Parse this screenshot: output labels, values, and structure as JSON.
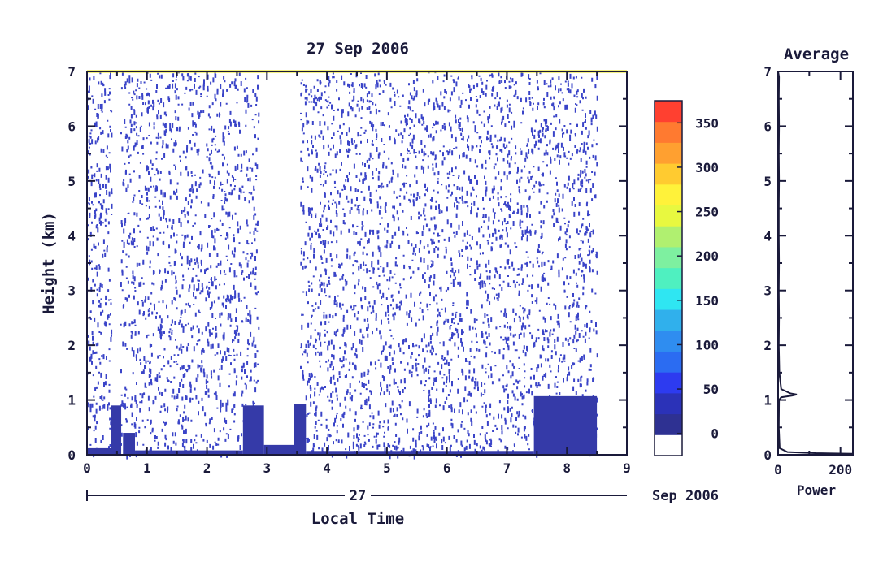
{
  "chart_data": [
    {
      "type": "heatmap",
      "title": "27 Sep 2006",
      "xlabel": "Local Time",
      "ylabel": "Height (km)",
      "xlim": [
        0,
        9
      ],
      "ylim": [
        0,
        7
      ],
      "x_ticks": [
        "0",
        "1",
        "2",
        "3",
        "4",
        "5",
        "6",
        "7",
        "8",
        "9"
      ],
      "y_ticks": [
        "0",
        "1",
        "2",
        "3",
        "4",
        "5",
        "6",
        "7"
      ],
      "date_row": {
        "day": "27",
        "month_year": "Sep 2006"
      },
      "noise": {
        "x_range": [
          0.0,
          8.5
        ],
        "y_range": [
          0.0,
          7.0
        ],
        "gaps": [
          [
            0.4,
            0.55
          ],
          [
            2.85,
            3.55
          ]
        ]
      },
      "dense_regions": [
        {
          "x0": 0.0,
          "x1": 0.4,
          "y0": 0.0,
          "y1": 0.12
        },
        {
          "x0": 0.4,
          "x1": 0.57,
          "y0": 0.0,
          "y1": 0.9
        },
        {
          "x0": 0.6,
          "x1": 0.8,
          "y0": 0.0,
          "y1": 0.4
        },
        {
          "x0": 0.8,
          "x1": 2.6,
          "y0": 0.0,
          "y1": 0.08
        },
        {
          "x0": 2.6,
          "x1": 2.95,
          "y0": 0.0,
          "y1": 0.9
        },
        {
          "x0": 2.95,
          "x1": 3.5,
          "y0": 0.0,
          "y1": 0.18
        },
        {
          "x0": 3.45,
          "x1": 3.65,
          "y0": 0.0,
          "y1": 0.92
        },
        {
          "x0": 3.65,
          "x1": 7.45,
          "y0": 0.0,
          "y1": 0.07
        },
        {
          "x0": 7.45,
          "x1": 8.5,
          "y0": 0.0,
          "y1": 1.07
        }
      ]
    },
    {
      "type": "bar",
      "title": "",
      "colorbar_ticks": [
        "0",
        "50",
        "100",
        "150",
        "200",
        "250",
        "300",
        "350"
      ],
      "colors": [
        "#ffffff",
        "#2e3192",
        "#2b32b8",
        "#2d3bf0",
        "#2b6cf2",
        "#2f8df0",
        "#30b0ec",
        "#2fe6f2",
        "#4ff0c0",
        "#7ef0a0",
        "#b0f070",
        "#e8f840",
        "#fff23a",
        "#ffcb30",
        "#ffa030",
        "#ff7a30",
        "#ff4030"
      ],
      "vmin": -25,
      "vmax": 375
    },
    {
      "type": "line",
      "title": "Average",
      "xlabel": "Power",
      "ylabel": "",
      "xlim": [
        0,
        240
      ],
      "ylim": [
        0,
        7
      ],
      "x_ticks": [
        "0",
        "200"
      ],
      "y_ticks": [
        "0",
        "1",
        "2",
        "3",
        "4",
        "5",
        "6",
        "7"
      ],
      "points": [
        [
          0,
          7
        ],
        [
          3,
          6.9
        ],
        [
          2,
          6.5
        ],
        [
          3,
          6
        ],
        [
          2,
          5.5
        ],
        [
          3,
          5
        ],
        [
          2,
          4.5
        ],
        [
          2,
          4
        ],
        [
          3,
          3.5
        ],
        [
          2,
          3
        ],
        [
          3,
          2.5
        ],
        [
          2,
          2
        ],
        [
          4,
          1.5
        ],
        [
          10,
          1.2
        ],
        [
          40,
          1.12
        ],
        [
          60,
          1.1
        ],
        [
          45,
          1.08
        ],
        [
          10,
          1.05
        ],
        [
          3,
          1.0
        ],
        [
          2,
          0.5
        ],
        [
          5,
          0.12
        ],
        [
          30,
          0.05
        ],
        [
          120,
          0.03
        ],
        [
          240,
          0.02
        ]
      ]
    }
  ]
}
